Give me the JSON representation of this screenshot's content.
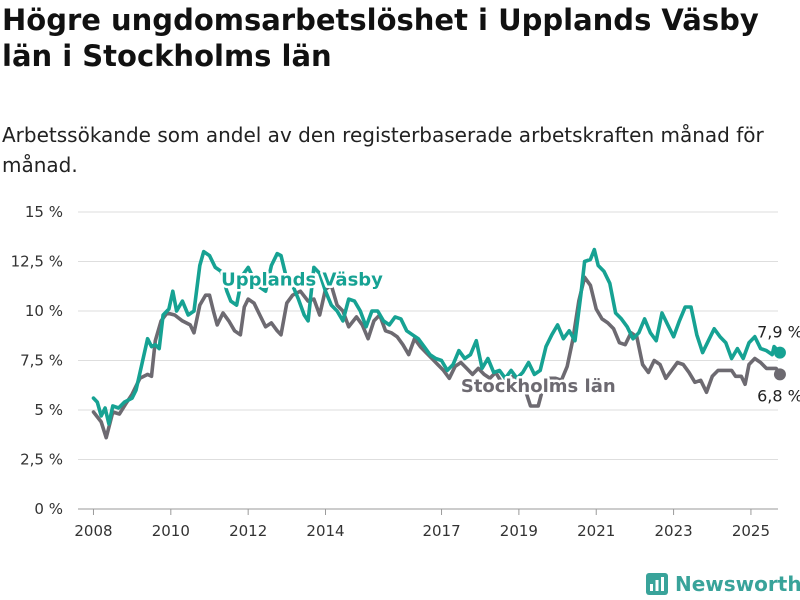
{
  "header": {
    "title": "Högre ungdomsarbetslöshet i Upplands Väsby län i Stockholms län",
    "subtitle": "Arbetssökande som andel av den registerbaserade arbetskraften månad för månad."
  },
  "brand": {
    "name": "Newsworthy",
    "icon": "newsworthy-logo-icon",
    "color": "#39a39a"
  },
  "chart_data": {
    "type": "line",
    "ylim": [
      0,
      15
    ],
    "xlim": [
      2007.6,
      2025.7
    ],
    "y_ticks": [
      0,
      2.5,
      5,
      7.5,
      10,
      12.5,
      15
    ],
    "y_tick_labels": [
      "0 %",
      "2,5 %",
      "5 %",
      "7,5 %",
      "10 %",
      "12,5 %",
      "15 %"
    ],
    "x_ticks": [
      2008,
      2010,
      2012,
      2014,
      2017,
      2019,
      2021,
      2023,
      2025
    ],
    "x_tick_labels": [
      "2008",
      "2010",
      "2012",
      "2014",
      "2017",
      "2019",
      "2021",
      "2023",
      "2025"
    ],
    "grid": "horizontal",
    "series": [
      {
        "name": "Stockholms län",
        "color": "#6d6a71",
        "end_label": "6,8 %",
        "points": [
          [
            2008.0,
            4.9
          ],
          [
            2008.2,
            4.4
          ],
          [
            2008.33,
            3.6
          ],
          [
            2008.5,
            4.9
          ],
          [
            2008.67,
            4.8
          ],
          [
            2008.83,
            5.3
          ],
          [
            2009.0,
            5.8
          ],
          [
            2009.2,
            6.6
          ],
          [
            2009.4,
            6.8
          ],
          [
            2009.5,
            6.7
          ],
          [
            2009.6,
            8.5
          ],
          [
            2009.75,
            9.5
          ],
          [
            2009.9,
            9.9
          ],
          [
            2010.1,
            9.8
          ],
          [
            2010.3,
            9.5
          ],
          [
            2010.5,
            9.3
          ],
          [
            2010.6,
            8.9
          ],
          [
            2010.75,
            10.3
          ],
          [
            2010.9,
            10.8
          ],
          [
            2011.0,
            10.8
          ],
          [
            2011.1,
            10.0
          ],
          [
            2011.2,
            9.3
          ],
          [
            2011.35,
            9.9
          ],
          [
            2011.5,
            9.5
          ],
          [
            2011.65,
            9.0
          ],
          [
            2011.8,
            8.8
          ],
          [
            2011.9,
            10.2
          ],
          [
            2012.0,
            10.6
          ],
          [
            2012.15,
            10.4
          ],
          [
            2012.3,
            9.8
          ],
          [
            2012.45,
            9.2
          ],
          [
            2012.6,
            9.4
          ],
          [
            2012.75,
            9.0
          ],
          [
            2012.85,
            8.8
          ],
          [
            2013.0,
            10.4
          ],
          [
            2013.15,
            10.8
          ],
          [
            2013.35,
            11.0
          ],
          [
            2013.55,
            10.5
          ],
          [
            2013.7,
            10.6
          ],
          [
            2013.85,
            9.8
          ],
          [
            2014.0,
            11.1
          ],
          [
            2014.15,
            11.3
          ],
          [
            2014.3,
            10.3
          ],
          [
            2014.45,
            10.0
          ],
          [
            2014.6,
            9.2
          ],
          [
            2014.8,
            9.7
          ],
          [
            2014.95,
            9.3
          ],
          [
            2015.1,
            8.6
          ],
          [
            2015.25,
            9.5
          ],
          [
            2015.4,
            9.8
          ],
          [
            2015.55,
            9.0
          ],
          [
            2015.7,
            8.9
          ],
          [
            2015.85,
            8.7
          ],
          [
            2016.0,
            8.3
          ],
          [
            2016.15,
            7.8
          ],
          [
            2016.3,
            8.6
          ],
          [
            2016.45,
            8.2
          ],
          [
            2016.6,
            7.9
          ],
          [
            2016.75,
            7.6
          ],
          [
            2016.9,
            7.3
          ],
          [
            2017.05,
            7.0
          ],
          [
            2017.2,
            6.6
          ],
          [
            2017.35,
            7.2
          ],
          [
            2017.5,
            7.4
          ],
          [
            2017.65,
            7.1
          ],
          [
            2017.8,
            6.8
          ],
          [
            2017.95,
            7.1
          ],
          [
            2018.1,
            6.8
          ],
          [
            2018.25,
            6.6
          ],
          [
            2018.4,
            6.9
          ],
          [
            2018.55,
            6.4
          ],
          [
            2018.7,
            6.5
          ],
          [
            2018.85,
            6.7
          ],
          [
            2019.0,
            6.6
          ],
          [
            2019.15,
            6.1
          ],
          [
            2019.3,
            5.2
          ],
          [
            2019.5,
            5.2
          ],
          [
            2019.65,
            6.3
          ],
          [
            2019.8,
            6.6
          ],
          [
            2019.95,
            6.6
          ],
          [
            2020.1,
            6.5
          ],
          [
            2020.25,
            7.2
          ],
          [
            2020.4,
            8.6
          ],
          [
            2020.55,
            10.5
          ],
          [
            2020.7,
            11.7
          ],
          [
            2020.85,
            11.3
          ],
          [
            2021.0,
            10.1
          ],
          [
            2021.15,
            9.6
          ],
          [
            2021.3,
            9.4
          ],
          [
            2021.45,
            9.1
          ],
          [
            2021.6,
            8.4
          ],
          [
            2021.75,
            8.3
          ],
          [
            2021.9,
            8.9
          ],
          [
            2022.05,
            8.7
          ],
          [
            2022.2,
            7.3
          ],
          [
            2022.35,
            6.9
          ],
          [
            2022.5,
            7.5
          ],
          [
            2022.65,
            7.3
          ],
          [
            2022.8,
            6.6
          ],
          [
            2022.95,
            7.0
          ],
          [
            2023.1,
            7.4
          ],
          [
            2023.25,
            7.3
          ],
          [
            2023.4,
            6.9
          ],
          [
            2023.55,
            6.4
          ],
          [
            2023.7,
            6.5
          ],
          [
            2023.85,
            5.9
          ],
          [
            2024.0,
            6.7
          ],
          [
            2024.15,
            7.0
          ],
          [
            2024.35,
            7.0
          ],
          [
            2024.5,
            7.0
          ],
          [
            2024.6,
            6.7
          ],
          [
            2024.75,
            6.7
          ],
          [
            2024.85,
            6.3
          ],
          [
            2024.95,
            7.3
          ],
          [
            2025.1,
            7.6
          ],
          [
            2025.25,
            7.4
          ],
          [
            2025.4,
            7.1
          ],
          [
            2025.55,
            7.1
          ],
          [
            2025.65,
            7.1
          ],
          [
            2025.75,
            6.8
          ]
        ]
      },
      {
        "name": "Upplands Väsby",
        "color": "#16a293",
        "end_label": "7,9 %",
        "points": [
          [
            2008.0,
            5.6
          ],
          [
            2008.1,
            5.4
          ],
          [
            2008.2,
            4.7
          ],
          [
            2008.3,
            5.1
          ],
          [
            2008.4,
            4.3
          ],
          [
            2008.5,
            5.2
          ],
          [
            2008.65,
            5.1
          ],
          [
            2008.8,
            5.4
          ],
          [
            2009.0,
            5.6
          ],
          [
            2009.1,
            6.0
          ],
          [
            2009.25,
            7.3
          ],
          [
            2009.4,
            8.6
          ],
          [
            2009.5,
            8.2
          ],
          [
            2009.6,
            8.3
          ],
          [
            2009.7,
            8.1
          ],
          [
            2009.8,
            9.8
          ],
          [
            2009.95,
            10.1
          ],
          [
            2010.05,
            11.0
          ],
          [
            2010.15,
            10.0
          ],
          [
            2010.3,
            10.5
          ],
          [
            2010.45,
            9.8
          ],
          [
            2010.6,
            10.0
          ],
          [
            2010.75,
            12.3
          ],
          [
            2010.85,
            13.0
          ],
          [
            2011.0,
            12.8
          ],
          [
            2011.15,
            12.2
          ],
          [
            2011.3,
            12.0
          ],
          [
            2011.45,
            11.0
          ],
          [
            2011.55,
            10.5
          ],
          [
            2011.7,
            10.3
          ],
          [
            2011.85,
            11.8
          ],
          [
            2012.0,
            12.2
          ],
          [
            2012.15,
            11.6
          ],
          [
            2012.3,
            11.2
          ],
          [
            2012.45,
            11.0
          ],
          [
            2012.6,
            12.3
          ],
          [
            2012.75,
            12.9
          ],
          [
            2012.85,
            12.8
          ],
          [
            2013.0,
            11.6
          ],
          [
            2013.15,
            11.3
          ],
          [
            2013.3,
            10.6
          ],
          [
            2013.45,
            9.8
          ],
          [
            2013.55,
            9.5
          ],
          [
            2013.7,
            12.2
          ],
          [
            2013.85,
            11.9
          ],
          [
            2014.0,
            11.0
          ],
          [
            2014.15,
            10.3
          ],
          [
            2014.3,
            10.0
          ],
          [
            2014.45,
            9.5
          ],
          [
            2014.6,
            10.6
          ],
          [
            2014.75,
            10.5
          ],
          [
            2014.9,
            10.0
          ],
          [
            2015.05,
            9.2
          ],
          [
            2015.2,
            10.0
          ],
          [
            2015.35,
            10.0
          ],
          [
            2015.5,
            9.5
          ],
          [
            2015.65,
            9.3
          ],
          [
            2015.8,
            9.7
          ],
          [
            2015.95,
            9.6
          ],
          [
            2016.1,
            9.0
          ],
          [
            2016.25,
            8.8
          ],
          [
            2016.4,
            8.6
          ],
          [
            2016.55,
            8.2
          ],
          [
            2016.7,
            7.8
          ],
          [
            2016.85,
            7.6
          ],
          [
            2017.0,
            7.5
          ],
          [
            2017.15,
            7.0
          ],
          [
            2017.3,
            7.3
          ],
          [
            2017.45,
            8.0
          ],
          [
            2017.6,
            7.6
          ],
          [
            2017.75,
            7.8
          ],
          [
            2017.9,
            8.5
          ],
          [
            2018.05,
            7.1
          ],
          [
            2018.2,
            7.6
          ],
          [
            2018.35,
            6.9
          ],
          [
            2018.5,
            7.0
          ],
          [
            2018.65,
            6.6
          ],
          [
            2018.8,
            7.0
          ],
          [
            2018.95,
            6.6
          ],
          [
            2019.1,
            6.9
          ],
          [
            2019.25,
            7.4
          ],
          [
            2019.4,
            6.8
          ],
          [
            2019.55,
            7.0
          ],
          [
            2019.7,
            8.2
          ],
          [
            2019.85,
            8.8
          ],
          [
            2020.0,
            9.3
          ],
          [
            2020.15,
            8.6
          ],
          [
            2020.3,
            9.0
          ],
          [
            2020.45,
            8.5
          ],
          [
            2020.6,
            10.8
          ],
          [
            2020.7,
            12.5
          ],
          [
            2020.85,
            12.6
          ],
          [
            2020.95,
            13.1
          ],
          [
            2021.05,
            12.3
          ],
          [
            2021.2,
            12.0
          ],
          [
            2021.35,
            11.4
          ],
          [
            2021.5,
            9.9
          ],
          [
            2021.65,
            9.6
          ],
          [
            2021.8,
            9.2
          ],
          [
            2021.95,
            8.6
          ],
          [
            2022.1,
            8.9
          ],
          [
            2022.25,
            9.6
          ],
          [
            2022.4,
            8.9
          ],
          [
            2022.55,
            8.5
          ],
          [
            2022.7,
            9.9
          ],
          [
            2022.85,
            9.3
          ],
          [
            2023.0,
            8.7
          ],
          [
            2023.15,
            9.5
          ],
          [
            2023.3,
            10.2
          ],
          [
            2023.45,
            10.2
          ],
          [
            2023.6,
            8.8
          ],
          [
            2023.75,
            7.9
          ],
          [
            2023.9,
            8.5
          ],
          [
            2024.05,
            9.1
          ],
          [
            2024.2,
            8.7
          ],
          [
            2024.35,
            8.4
          ],
          [
            2024.5,
            7.6
          ],
          [
            2024.65,
            8.1
          ],
          [
            2024.8,
            7.6
          ],
          [
            2024.95,
            8.4
          ],
          [
            2025.1,
            8.7
          ],
          [
            2025.25,
            8.1
          ],
          [
            2025.4,
            8.0
          ],
          [
            2025.55,
            7.8
          ],
          [
            2025.6,
            8.2
          ],
          [
            2025.7,
            8.0
          ],
          [
            2025.75,
            7.9
          ]
        ]
      }
    ]
  }
}
